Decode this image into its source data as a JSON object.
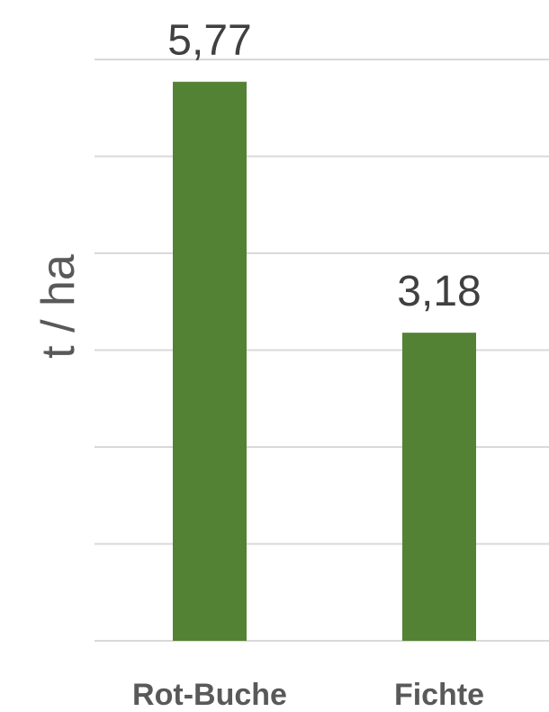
{
  "chart_data": {
    "type": "bar",
    "categories": [
      "Rot-Buche",
      "Fichte"
    ],
    "values": [
      5.77,
      3.18
    ],
    "value_labels": [
      "5,77",
      "3,18"
    ],
    "ylabel": "t / ha",
    "ylim": [
      0,
      6
    ],
    "grid_step": 1,
    "grid": true,
    "bar_color": "#548235"
  }
}
